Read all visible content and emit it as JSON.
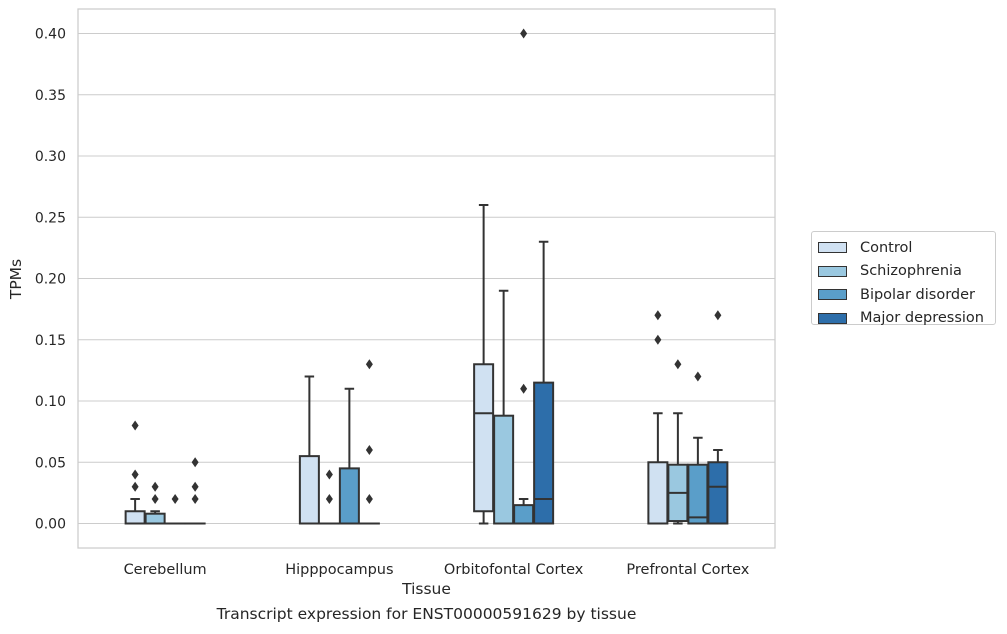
{
  "caption": "Transcript expression for ENST00000591629 by tissue",
  "chart_data": {
    "type": "box",
    "xlabel": "Tissue",
    "ylabel": "TPMs",
    "ylim": [
      -0.02,
      0.42
    ],
    "yticks": [
      "0.00",
      "0.05",
      "0.10",
      "0.15",
      "0.20",
      "0.25",
      "0.30",
      "0.35",
      "0.40"
    ],
    "grid": "horizontal",
    "legend_position": "right",
    "categories": [
      "Cerebellum",
      "Hipppocampus",
      "Orbitofontal Cortex",
      "Prefrontal Cortex"
    ],
    "series": [
      {
        "name": "Control",
        "color": "#d0e1f2",
        "boxes": [
          {
            "q1": 0.0,
            "median": 0.0,
            "q3": 0.01,
            "whislo": 0.0,
            "whishi": 0.02,
            "fliers": [
              0.03,
              0.04,
              0.08
            ]
          },
          {
            "q1": 0.0,
            "median": 0.0,
            "q3": 0.055,
            "whislo": 0.0,
            "whishi": 0.12,
            "fliers": []
          },
          {
            "q1": 0.01,
            "median": 0.09,
            "q3": 0.13,
            "whislo": 0.0,
            "whishi": 0.26,
            "fliers": []
          },
          {
            "q1": 0.0,
            "median": 0.0,
            "q3": 0.05,
            "whislo": 0.0,
            "whishi": 0.09,
            "fliers": [
              0.15,
              0.17
            ]
          }
        ]
      },
      {
        "name": "Schizophrenia",
        "color": "#9ac8e0",
        "boxes": [
          {
            "q1": 0.0,
            "median": 0.0,
            "q3": 0.008,
            "whislo": 0.0,
            "whishi": 0.01,
            "fliers": [
              0.02,
              0.03
            ]
          },
          {
            "q1": 0.0,
            "median": 0.0,
            "q3": 0.0,
            "whislo": 0.0,
            "whishi": 0.0,
            "fliers": [
              0.02,
              0.04
            ]
          },
          {
            "q1": 0.0,
            "median": 0.0,
            "q3": 0.088,
            "whislo": 0.0,
            "whishi": 0.19,
            "fliers": []
          },
          {
            "q1": 0.002,
            "median": 0.025,
            "q3": 0.048,
            "whislo": 0.0,
            "whishi": 0.09,
            "fliers": [
              0.13
            ]
          }
        ]
      },
      {
        "name": "Bipolar disorder",
        "color": "#5a9ec9",
        "boxes": [
          {
            "q1": 0.0,
            "median": 0.0,
            "q3": 0.0,
            "whislo": 0.0,
            "whishi": 0.0,
            "fliers": [
              0.02
            ]
          },
          {
            "q1": 0.0,
            "median": 0.0,
            "q3": 0.045,
            "whislo": 0.0,
            "whishi": 0.11,
            "fliers": []
          },
          {
            "q1": 0.0,
            "median": 0.0,
            "q3": 0.015,
            "whislo": 0.0,
            "whishi": 0.02,
            "fliers": [
              0.11,
              0.4
            ]
          },
          {
            "q1": 0.0,
            "median": 0.005,
            "q3": 0.048,
            "whislo": 0.0,
            "whishi": 0.07,
            "fliers": [
              0.12
            ]
          }
        ]
      },
      {
        "name": "Major depression",
        "color": "#2d6eaa",
        "boxes": [
          {
            "q1": 0.0,
            "median": 0.0,
            "q3": 0.0,
            "whislo": 0.0,
            "whishi": 0.0,
            "fliers": [
              0.02,
              0.03,
              0.05
            ]
          },
          {
            "q1": 0.0,
            "median": 0.0,
            "q3": 0.0,
            "whislo": 0.0,
            "whishi": 0.0,
            "fliers": [
              0.02,
              0.06,
              0.13
            ]
          },
          {
            "q1": 0.0,
            "median": 0.02,
            "q3": 0.115,
            "whislo": 0.0,
            "whishi": 0.23,
            "fliers": []
          },
          {
            "q1": 0.0,
            "median": 0.03,
            "q3": 0.05,
            "whislo": 0.0,
            "whishi": 0.06,
            "fliers": [
              0.17
            ]
          }
        ]
      }
    ]
  }
}
